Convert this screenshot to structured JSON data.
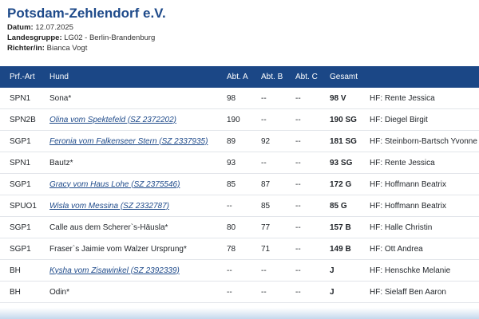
{
  "club": {
    "title": "Potsdam-Zehlendorf e.V."
  },
  "meta": {
    "datum_label": "Datum:",
    "datum_value": "12.07.2025",
    "landesgruppe_label": "Landesgruppe:",
    "landesgruppe_value": "LG02 - Berlin-Brandenburg",
    "richter_label": "Richter/in:",
    "richter_value": "Bianca Vogt"
  },
  "table": {
    "headers": {
      "art": "Prf.-Art",
      "hund": "Hund",
      "a": "Abt. A",
      "b": "Abt. B",
      "c": "Abt. C",
      "gesamt": "Gesamt",
      "richter": ""
    },
    "rows": [
      {
        "art": "SPN1",
        "hund": "Sona*",
        "link": false,
        "a": "98",
        "b": "--",
        "c": "--",
        "gesamt": "98 V",
        "hf": "HF: Rente Jessica"
      },
      {
        "art": "SPN2B",
        "hund": "Olina vom Spektefeld (SZ 2372202)",
        "link": true,
        "a": "190",
        "b": "--",
        "c": "--",
        "gesamt": "190 SG",
        "hf": "HF: Diegel Birgit"
      },
      {
        "art": "SGP1",
        "hund": "Feronia vom Falkenseer Stern (SZ 2337935)",
        "link": true,
        "a": "89",
        "b": "92",
        "c": "--",
        "gesamt": "181 SG",
        "hf": "HF: Steinborn-Bartsch Yvonne"
      },
      {
        "art": "SPN1",
        "hund": "Bautz*",
        "link": false,
        "a": "93",
        "b": "--",
        "c": "--",
        "gesamt": "93 SG",
        "hf": "HF: Rente Jessica"
      },
      {
        "art": "SGP1",
        "hund": "Gracy vom Haus Lohe (SZ 2375546)",
        "link": true,
        "a": "85",
        "b": "87",
        "c": "--",
        "gesamt": "172 G",
        "hf": "HF: Hoffmann Beatrix"
      },
      {
        "art": "SPUO1",
        "hund": "Wisla vom Messina (SZ 2332787)",
        "link": true,
        "a": "--",
        "b": "85",
        "c": "--",
        "gesamt": "85 G",
        "hf": "HF: Hoffmann Beatrix"
      },
      {
        "art": "SGP1",
        "hund": "Calle aus dem Scherer`s-Häusla*",
        "link": false,
        "a": "80",
        "b": "77",
        "c": "--",
        "gesamt": "157 B",
        "hf": "HF: Halle Christin"
      },
      {
        "art": "SGP1",
        "hund": "Fraser`s Jaimie vom Walzer Ursprung*",
        "link": false,
        "a": "78",
        "b": "71",
        "c": "--",
        "gesamt": "149 B",
        "hf": "HF: Ott Andrea"
      },
      {
        "art": "BH",
        "hund": "Kysha vom Zisawinkel (SZ 2392339)",
        "link": true,
        "a": "--",
        "b": "--",
        "c": "--",
        "gesamt": "J",
        "hf": "HF: Henschke Melanie"
      },
      {
        "art": "BH",
        "hund": "Odin*",
        "link": false,
        "a": "--",
        "b": "--",
        "c": "--",
        "gesamt": "J",
        "hf": "HF: Sielaff Ben Aaron"
      }
    ]
  }
}
